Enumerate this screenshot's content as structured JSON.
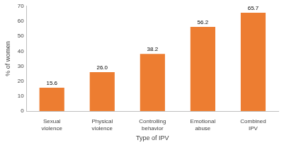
{
  "chart_data": {
    "type": "bar",
    "x_label": "Type of IPV",
    "y_label": "% of women",
    "categories": [
      "Sexual violence",
      "Physical violence",
      "Controlling behavior",
      "Emotional abuse",
      "Combined IPV"
    ],
    "values": [
      15.6,
      26.0,
      38.2,
      56.2,
      65.7
    ],
    "value_labels": [
      "15.6",
      "26.0",
      "38.2",
      "56.2",
      "65.7"
    ],
    "color": "#ed7d31",
    "ylim": [
      0,
      70
    ],
    "yticks": [
      0,
      10,
      20,
      30,
      40,
      50,
      60,
      70
    ],
    "grid": false,
    "data_labels": true
  }
}
